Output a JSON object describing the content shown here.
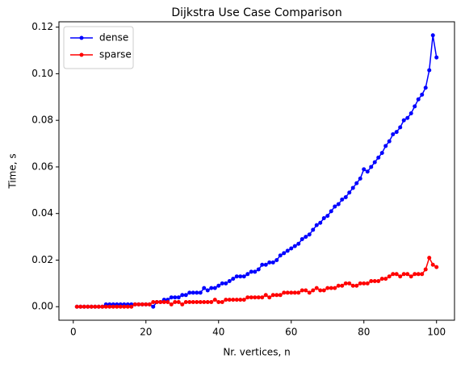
{
  "chart_data": {
    "type": "line",
    "title": "Dijkstra Use Case Comparison",
    "xlabel": "Nr. vertices, n",
    "ylabel": "Time, s",
    "x": [
      1,
      2,
      3,
      4,
      5,
      6,
      7,
      8,
      9,
      10,
      11,
      12,
      13,
      14,
      15,
      16,
      17,
      18,
      19,
      20,
      21,
      22,
      23,
      24,
      25,
      26,
      27,
      28,
      29,
      30,
      31,
      32,
      33,
      34,
      35,
      36,
      37,
      38,
      39,
      40,
      41,
      42,
      43,
      44,
      45,
      46,
      47,
      48,
      49,
      50,
      51,
      52,
      53,
      54,
      55,
      56,
      57,
      58,
      59,
      60,
      61,
      62,
      63,
      64,
      65,
      66,
      67,
      68,
      69,
      70,
      71,
      72,
      73,
      74,
      75,
      76,
      77,
      78,
      79,
      80,
      81,
      82,
      83,
      84,
      85,
      86,
      87,
      88,
      89,
      90,
      91,
      92,
      93,
      94,
      95,
      96,
      97,
      98,
      99,
      100
    ],
    "series": [
      {
        "name": "dense",
        "color": "#0000ff",
        "values": [
          0,
          0,
          0,
          0,
          0,
          0,
          0,
          0,
          0.001,
          0.001,
          0.001,
          0.001,
          0.001,
          0.001,
          0.001,
          0.001,
          0.001,
          0.001,
          0.001,
          0.001,
          0.001,
          0,
          0.002,
          0.002,
          0.003,
          0.003,
          0.004,
          0.004,
          0.004,
          0.005,
          0.005,
          0.006,
          0.006,
          0.006,
          0.006,
          0.008,
          0.007,
          0.008,
          0.008,
          0.009,
          0.01,
          0.01,
          0.011,
          0.012,
          0.013,
          0.013,
          0.013,
          0.014,
          0.015,
          0.015,
          0.016,
          0.018,
          0.018,
          0.019,
          0.019,
          0.02,
          0.022,
          0.023,
          0.024,
          0.025,
          0.026,
          0.027,
          0.029,
          0.03,
          0.031,
          0.033,
          0.035,
          0.036,
          0.038,
          0.039,
          0.041,
          0.043,
          0.044,
          0.046,
          0.047,
          0.049,
          0.051,
          0.053,
          0.055,
          0.059,
          0.058,
          0.06,
          0.062,
          0.064,
          0.066,
          0.069,
          0.071,
          0.074,
          0.075,
          0.077,
          0.08,
          0.081,
          0.083,
          0.086,
          0.089,
          0.091,
          0.094,
          0.1015,
          0.1165,
          0.107
        ]
      },
      {
        "name": "sparse",
        "color": "#ff0000",
        "values": [
          0,
          0,
          0,
          0,
          0,
          0,
          0,
          0,
          0,
          0,
          0,
          0,
          0,
          0,
          0,
          0,
          0.001,
          0.001,
          0.001,
          0.001,
          0.001,
          0.002,
          0.002,
          0.002,
          0.002,
          0.002,
          0.001,
          0.002,
          0.002,
          0.001,
          0.002,
          0.002,
          0.002,
          0.002,
          0.002,
          0.002,
          0.002,
          0.002,
          0.003,
          0.002,
          0.002,
          0.003,
          0.003,
          0.003,
          0.003,
          0.003,
          0.003,
          0.004,
          0.004,
          0.004,
          0.004,
          0.004,
          0.005,
          0.004,
          0.005,
          0.005,
          0.005,
          0.006,
          0.006,
          0.006,
          0.006,
          0.006,
          0.007,
          0.007,
          0.006,
          0.007,
          0.008,
          0.007,
          0.007,
          0.008,
          0.008,
          0.008,
          0.009,
          0.009,
          0.01,
          0.01,
          0.009,
          0.009,
          0.01,
          0.01,
          0.01,
          0.011,
          0.011,
          0.011,
          0.012,
          0.012,
          0.013,
          0.014,
          0.014,
          0.013,
          0.014,
          0.014,
          0.013,
          0.014,
          0.014,
          0.014,
          0.016,
          0.021,
          0.018,
          0.017
        ]
      }
    ],
    "xlim": [
      -3.95,
      104.95
    ],
    "xticks": [
      0,
      20,
      40,
      60,
      80,
      100
    ],
    "ylim": [
      -0.0058,
      0.1223
    ],
    "yticks": [
      {
        "value": 0,
        "label": "0.00"
      },
      {
        "value": 0.02,
        "label": "0.02"
      },
      {
        "value": 0.04,
        "label": "0.04"
      },
      {
        "value": 0.06,
        "label": "0.06"
      },
      {
        "value": 0.08,
        "label": "0.08"
      },
      {
        "value": 0.1,
        "label": "0.10"
      },
      {
        "value": 0.12,
        "label": "0.12"
      }
    ],
    "grid": false,
    "legend": "upper left"
  }
}
